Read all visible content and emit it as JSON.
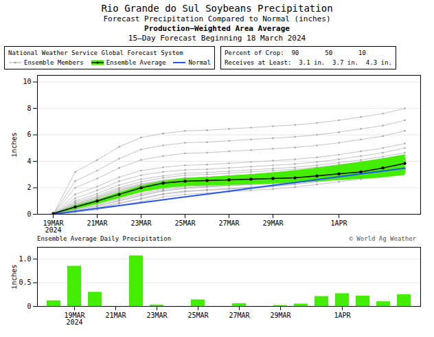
{
  "chart_data": [
    {
      "type": "line",
      "title": "Rio Grande do Sul Soybeans Precipitation",
      "subtitle": [
        "Forecast Precipitation Compared to Normal (inches)",
        "Production–Weighted Area Average",
        "15–Day Forecast Beginning 18 March 2024"
      ],
      "legend_title": "National Weather Service Global Forecast System",
      "legend": "upper left",
      "annotations": [
        "Percent of Crop:  90       50       10",
        "Receives at Least:  3.1 in.  3.7 in.  4.3 in."
      ],
      "categories": [
        "19MAR\n2024",
        null,
        "21MAR",
        null,
        "23MAR",
        null,
        "25MAR",
        null,
        "27MAR",
        null,
        "29MAR",
        null,
        null,
        "1APR",
        null,
        null,
        null
      ],
      "ylabel": "inches",
      "ylim": [
        0,
        10.5
      ],
      "yticks": [
        0,
        2,
        4,
        6,
        8,
        10
      ],
      "grid": true,
      "series": [
        {
          "name": "Ensemble Members",
          "color": "#aaaaaa",
          "marker": "o",
          "members": [
            [
              0.0,
              0.5,
              0.95,
              1.35,
              1.75,
              2.1,
              2.3,
              2.4,
              2.5,
              2.6,
              2.7,
              2.85,
              3.0,
              3.2,
              3.4,
              3.55,
              3.8
            ],
            [
              0.0,
              0.8,
              1.3,
              1.9,
              2.3,
              2.55,
              2.75,
              2.8,
              2.9,
              3.0,
              3.1,
              3.2,
              3.35,
              3.5,
              3.65,
              3.85,
              4.1
            ],
            [
              0.0,
              0.4,
              0.75,
              1.15,
              1.55,
              1.9,
              2.1,
              2.15,
              2.2,
              2.25,
              2.3,
              2.4,
              2.55,
              2.7,
              2.85,
              3.0,
              3.2
            ],
            [
              0.0,
              0.6,
              1.05,
              1.5,
              1.9,
              2.2,
              2.4,
              2.5,
              2.6,
              2.7,
              2.8,
              2.95,
              3.1,
              3.3,
              3.5,
              3.7,
              3.95
            ],
            [
              0.0,
              0.45,
              0.85,
              1.3,
              1.7,
              2.0,
              2.2,
              2.3,
              2.4,
              2.5,
              2.6,
              2.75,
              2.95,
              3.15,
              3.35,
              3.55,
              3.8
            ],
            [
              0.0,
              0.7,
              1.2,
              1.75,
              2.2,
              2.5,
              2.7,
              2.75,
              2.85,
              2.95,
              3.05,
              3.15,
              3.3,
              3.5,
              3.7,
              3.9,
              4.2
            ],
            [
              0.0,
              0.3,
              0.6,
              1.0,
              1.4,
              1.75,
              1.95,
              2.05,
              2.15,
              2.25,
              2.35,
              2.5,
              2.65,
              2.85,
              3.05,
              3.2,
              3.45
            ],
            [
              0.0,
              0.55,
              1.0,
              1.45,
              1.85,
              2.15,
              2.35,
              2.45,
              2.55,
              2.65,
              2.75,
              2.9,
              3.05,
              3.25,
              3.45,
              3.65,
              3.9
            ],
            [
              0.0,
              1.0,
              1.55,
              2.2,
              2.65,
              2.9,
              3.1,
              3.15,
              3.25,
              3.35,
              3.45,
              3.55,
              3.7,
              3.9,
              4.1,
              4.35,
              4.65
            ],
            [
              0.0,
              0.25,
              0.5,
              0.85,
              1.2,
              1.55,
              1.75,
              1.85,
              1.95,
              2.05,
              2.15,
              2.3,
              2.5,
              2.7,
              2.9,
              3.1,
              3.35
            ],
            [
              0.0,
              1.2,
              1.8,
              2.5,
              2.95,
              3.2,
              3.35,
              3.4,
              3.5,
              3.6,
              3.7,
              3.8,
              3.95,
              4.15,
              4.4,
              4.65,
              5.0
            ],
            [
              0.0,
              0.9,
              1.4,
              2.0,
              2.45,
              2.75,
              2.95,
              3.0,
              3.1,
              3.2,
              3.3,
              3.4,
              3.55,
              3.75,
              3.95,
              4.15,
              4.45
            ],
            [
              0.0,
              0.35,
              0.65,
              1.05,
              1.45,
              1.8,
              2.0,
              2.1,
              2.2,
              2.3,
              2.4,
              2.55,
              2.7,
              2.9,
              3.1,
              3.3,
              3.55
            ],
            [
              0.0,
              0.65,
              1.1,
              1.6,
              2.0,
              2.3,
              2.5,
              2.6,
              2.7,
              2.8,
              2.9,
              3.05,
              3.2,
              3.4,
              3.6,
              3.8,
              4.05
            ],
            [
              0.0,
              0.5,
              0.9,
              1.35,
              1.75,
              2.05,
              2.25,
              2.35,
              2.45,
              2.55,
              2.65,
              2.8,
              2.95,
              3.15,
              3.35,
              3.55,
              3.8
            ],
            [
              0.0,
              0.75,
              1.25,
              1.8,
              2.25,
              2.55,
              2.75,
              2.8,
              2.9,
              3.0,
              3.1,
              3.2,
              3.35,
              3.55,
              3.75,
              3.95,
              4.25
            ],
            [
              0.0,
              0.2,
              0.45,
              0.8,
              1.15,
              1.5,
              1.7,
              1.8,
              1.9,
              2.0,
              2.1,
              2.25,
              2.45,
              2.65,
              2.85,
              3.05,
              3.3
            ],
            [
              0.0,
              1.5,
              2.1,
              2.8,
              3.3,
              3.55,
              3.7,
              3.75,
              3.85,
              3.95,
              4.05,
              4.15,
              4.3,
              4.5,
              4.75,
              5.0,
              5.35
            ],
            [
              0.0,
              2.0,
              2.7,
              3.5,
              4.1,
              4.4,
              4.6,
              4.65,
              4.75,
              4.85,
              4.95,
              5.05,
              5.2,
              5.4,
              5.65,
              5.9,
              6.3
            ],
            [
              0.0,
              2.5,
              3.3,
              4.2,
              4.9,
              5.2,
              5.4,
              5.45,
              5.55,
              5.65,
              5.75,
              5.85,
              6.0,
              6.2,
              6.45,
              6.7,
              7.1
            ],
            [
              0.0,
              0.15,
              0.35,
              0.65,
              0.95,
              1.3,
              1.5,
              1.6,
              1.7,
              1.8,
              1.9,
              2.05,
              2.25,
              2.45,
              2.65,
              2.85,
              3.1
            ],
            [
              0.0,
              3.2,
              4.1,
              5.1,
              5.8,
              6.1,
              6.3,
              6.35,
              6.45,
              6.55,
              6.65,
              6.75,
              6.9,
              7.1,
              7.35,
              7.6,
              8.0
            ]
          ]
        },
        {
          "name": "Ensemble Average",
          "color": "#000000",
          "marker": "o",
          "values": [
            0.05,
            0.55,
            1.0,
            1.5,
            2.0,
            2.35,
            2.5,
            2.55,
            2.6,
            2.65,
            2.7,
            2.75,
            2.9,
            3.05,
            3.2,
            3.5,
            3.85
          ],
          "band_lower": [
            0.0,
            0.35,
            0.75,
            1.2,
            1.65,
            1.95,
            2.1,
            2.15,
            2.2,
            2.25,
            2.3,
            2.35,
            2.45,
            2.55,
            2.65,
            2.75,
            2.95
          ],
          "band_upper": [
            0.05,
            0.65,
            1.1,
            1.65,
            2.15,
            2.5,
            2.7,
            2.8,
            2.9,
            3.0,
            3.15,
            3.3,
            3.5,
            3.7,
            3.95,
            4.2,
            4.5
          ],
          "band_color": "#44ee00"
        },
        {
          "name": "Normal",
          "color": "#2255ff",
          "values": [
            0.0,
            0.22,
            0.44,
            0.65,
            0.87,
            1.09,
            1.31,
            1.52,
            1.74,
            1.96,
            2.18,
            2.39,
            2.61,
            2.83,
            3.05,
            3.26,
            3.48
          ]
        }
      ]
    },
    {
      "type": "bar",
      "title": "Ensemble Average Daily Precipitation",
      "annotations": [
        "© World Ag Weather"
      ],
      "categories": [
        null,
        "19MAR\n2024",
        null,
        "21MAR",
        null,
        "23MAR",
        null,
        "25MAR",
        null,
        "27MAR",
        null,
        "29MAR",
        null,
        null,
        "1APR",
        null,
        null,
        null
      ],
      "values": [
        0.12,
        0.85,
        0.3,
        0.0,
        1.07,
        0.03,
        0.0,
        0.14,
        0.0,
        0.06,
        0.0,
        0.02,
        0.05,
        0.21,
        0.27,
        0.22,
        0.1,
        0.25
      ],
      "color": "#44ee00",
      "ylabel": "inches",
      "ylim": [
        0,
        1.25
      ],
      "yticks": [
        0,
        0.5,
        {
          "value": 1,
          "label": "1.0"
        }
      ],
      "grid": true
    }
  ]
}
